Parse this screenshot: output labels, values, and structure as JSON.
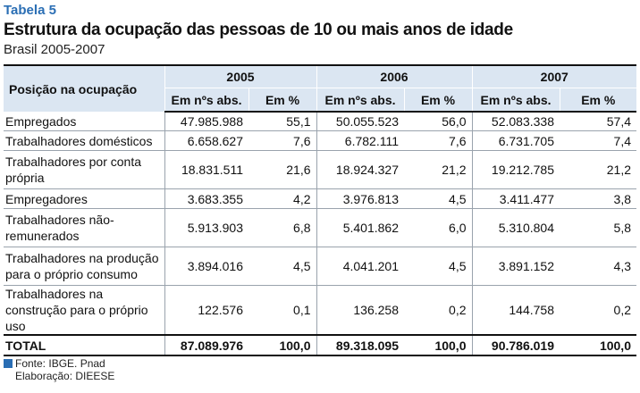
{
  "header": {
    "label": "Tabela 5",
    "title": "Estrutura da ocupação das pessoas de 10 ou mais anos de idade",
    "subtitle": "Brasil 2005-2007"
  },
  "table": {
    "corner": "Posição na ocupação",
    "years": [
      "2005",
      "2006",
      "2007"
    ],
    "col_abs": "Em nºs abs.",
    "col_pct": "Em %",
    "rows": [
      {
        "label": "Empregados",
        "v": [
          "47.985.988",
          "55,1",
          "50.055.523",
          "56,0",
          "52.083.338",
          "57,4"
        ]
      },
      {
        "label": "Trabalhadores domésticos",
        "v": [
          "6.658.627",
          "7,6",
          "6.782.111",
          "7,6",
          "6.731.705",
          "7,4"
        ]
      },
      {
        "label": "Trabalhadores por conta própria",
        "v": [
          "18.831.511",
          "21,6",
          "18.924.327",
          "21,2",
          "19.212.785",
          "21,2"
        ]
      },
      {
        "label": "Empregadores",
        "v": [
          "3.683.355",
          "4,2",
          "3.976.813",
          "4,5",
          "3.411.477",
          "3,8"
        ]
      },
      {
        "label": "Trabalhadores não-remunerados",
        "v": [
          "5.913.903",
          "6,8",
          "5.401.862",
          "6,0",
          "5.310.804",
          "5,8"
        ]
      },
      {
        "label": "Trabalhadores na produção para o próprio consumo",
        "v": [
          "3.894.016",
          "4,5",
          "4.041.201",
          "4,5",
          "3.891.152",
          "4,3"
        ]
      },
      {
        "label": "Trabalhadores na construção para o próprio uso",
        "v": [
          "122.576",
          "0,1",
          "136.258",
          "0,2",
          "144.758",
          "0,2"
        ]
      }
    ],
    "total": {
      "label": "TOTAL",
      "v": [
        "87.089.976",
        "100,0",
        "89.318.095",
        "100,0",
        "90.786.019",
        "100,0"
      ]
    }
  },
  "footer": {
    "source": "Fonte: IBGE. Pnad",
    "elaboration": "Elaboração: DIEESE"
  },
  "colors": {
    "accent": "#2a6eb4",
    "header_bg": "#dbe6f2"
  }
}
